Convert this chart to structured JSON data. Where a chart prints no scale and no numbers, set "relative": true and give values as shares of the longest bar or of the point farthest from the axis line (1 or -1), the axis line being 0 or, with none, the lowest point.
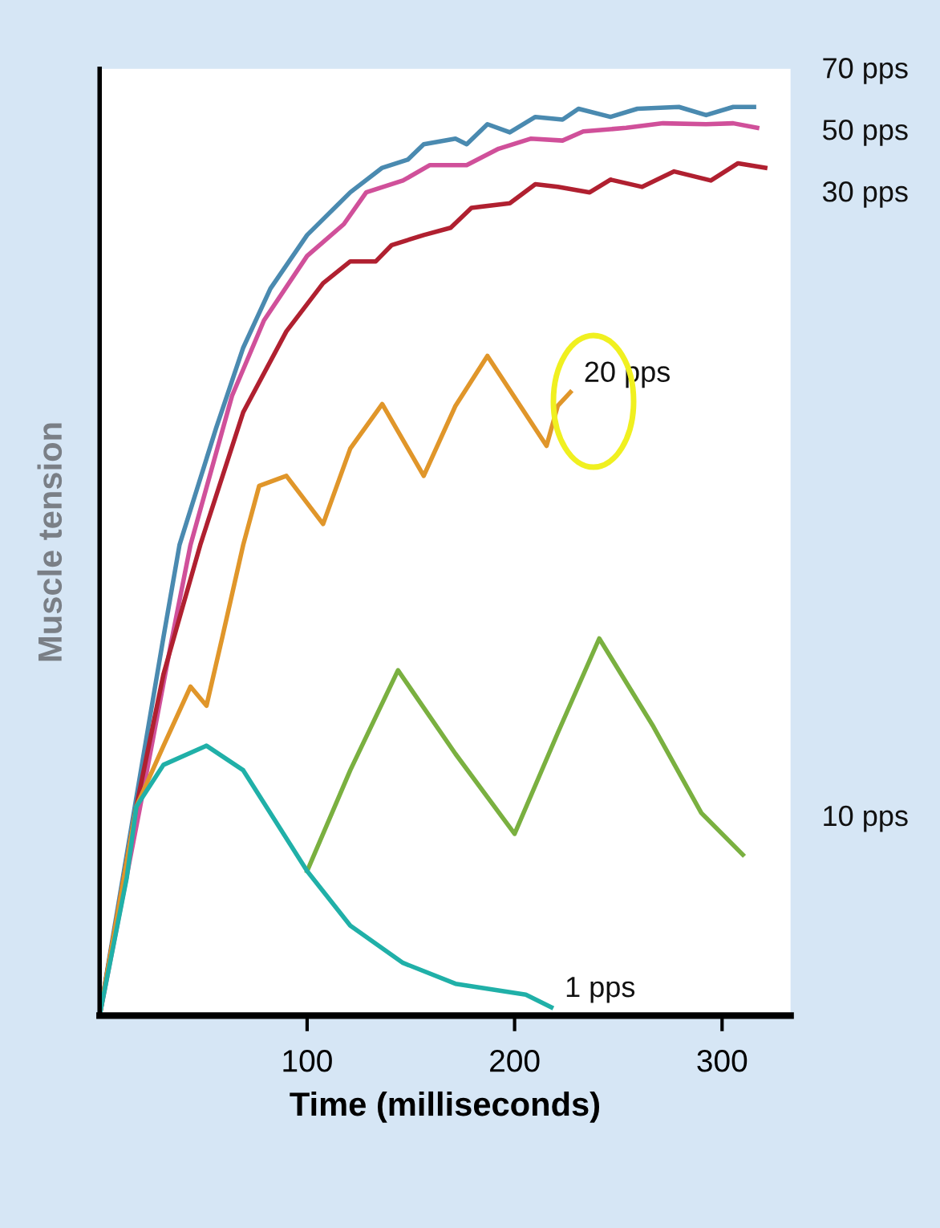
{
  "chart_data": {
    "type": "line",
    "relative": true,
    "xlabel": "Time (milliseconds)",
    "ylabel": "Muscle tension",
    "xlim": [
      0,
      333
    ],
    "xticks": [
      100,
      200,
      300
    ],
    "grid": false,
    "legend": false,
    "series": [
      {
        "name": "70 pps",
        "color": "#4a8ab0",
        "x": [
          0,
          17.7,
          30.8,
          38.5,
          56.2,
          69.2,
          82.3,
          100,
          120.8,
          136.2,
          148.5,
          156.2,
          171.5,
          176.9,
          186.9,
          197.7,
          210,
          223.1,
          230.8,
          246.2,
          259.2,
          279.2,
          292.3,
          305.4,
          315.4
        ],
        "values": [
          0,
          0.24,
          0.417,
          0.518,
          0.647,
          0.735,
          0.8,
          0.859,
          0.906,
          0.933,
          0.942,
          0.959,
          0.965,
          0.959,
          0.981,
          0.972,
          0.989,
          0.986,
          0.998,
          0.989,
          0.998,
          1.0,
          0.991,
          1.0,
          1.0
        ]
      },
      {
        "name": "50 pps",
        "color": "#d0509a",
        "x": [
          0,
          19.2,
          34.6,
          43.8,
          63.8,
          79.2,
          100,
          117.7,
          128.5,
          146.2,
          159.2,
          176.9,
          192.3,
          207.7,
          223.1,
          233.1,
          253.8,
          271.5,
          292.3,
          305.4,
          316.9
        ],
        "values": [
          0,
          0.226,
          0.412,
          0.518,
          0.682,
          0.765,
          0.836,
          0.871,
          0.906,
          0.919,
          0.936,
          0.936,
          0.954,
          0.965,
          0.963,
          0.973,
          0.977,
          0.982,
          0.981,
          0.982,
          0.977
        ]
      },
      {
        "name": "30 pps",
        "color": "#b02030",
        "x": [
          0,
          17.7,
          30.8,
          48.5,
          69.2,
          90,
          107.7,
          120.8,
          133.1,
          140.8,
          156.2,
          169.2,
          179.2,
          197.7,
          210,
          220.8,
          236.2,
          246.2,
          261.5,
          276.9,
          294.6,
          307.7,
          320.8
        ],
        "values": [
          0,
          0.23,
          0.376,
          0.518,
          0.664,
          0.753,
          0.806,
          0.83,
          0.83,
          0.848,
          0.859,
          0.867,
          0.889,
          0.894,
          0.915,
          0.912,
          0.906,
          0.92,
          0.912,
          0.929,
          0.919,
          0.938,
          0.933
        ]
      },
      {
        "name": "20 pps",
        "color": "#e0962a",
        "x": [
          0,
          17.7,
          30.8,
          43.8,
          51.5,
          59.2,
          69.2,
          76.9,
          90,
          107.7,
          120.8,
          136.2,
          156.2,
          171.5,
          186.9,
          215.4,
          220.8,
          226.9
        ],
        "values": [
          0,
          0.23,
          0.297,
          0.362,
          0.341,
          0.417,
          0.518,
          0.583,
          0.594,
          0.541,
          0.624,
          0.673,
          0.594,
          0.671,
          0.726,
          0.627,
          0.671,
          0.686
        ]
      },
      {
        "name": "10 pps",
        "color": "#7ab040",
        "x": [
          100,
          120.8,
          143.8,
          171.5,
          200,
          220.8,
          240.8,
          266.9,
          290,
          310
        ],
        "values": [
          0.159,
          0.27,
          0.38,
          0.288,
          0.2,
          0.311,
          0.415,
          0.318,
          0.223,
          0.177
        ]
      },
      {
        "name": "1 pps",
        "color": "#20b0a8",
        "x": [
          0,
          13.1,
          17.7,
          30.8,
          51.5,
          69.2,
          100,
          120.8,
          146.2,
          171.5,
          205.4,
          217.7
        ],
        "values": [
          0,
          0.152,
          0.23,
          0.276,
          0.297,
          0.27,
          0.159,
          0.099,
          0.058,
          0.035,
          0.023,
          0.009
        ]
      }
    ]
  }
}
